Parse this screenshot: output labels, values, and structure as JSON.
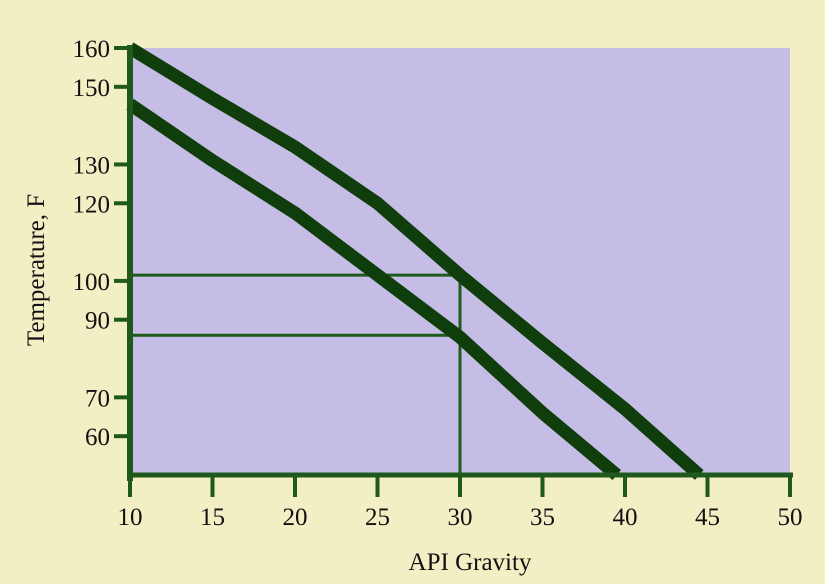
{
  "colors": {
    "background": "#f3efc5",
    "plot_area": "#c6bde6",
    "axis": "#1f5a1c",
    "curve": "#0f3d0c",
    "guide": "#1e5a1a"
  },
  "chart_data": {
    "type": "line",
    "title": "",
    "xlabel": "API Gravity",
    "ylabel": "Temperature, F",
    "xlim": [
      10,
      50
    ],
    "ylim": [
      50,
      160
    ],
    "x_ticks": [
      10,
      15,
      20,
      25,
      30,
      35,
      40,
      45,
      50
    ],
    "y_ticks": [
      60,
      70,
      90,
      100,
      120,
      130,
      150,
      160
    ],
    "grid": false,
    "legend": "none",
    "series": [
      {
        "x": [
          10,
          15,
          20,
          25,
          30,
          35,
          40,
          44.5
        ],
        "y": [
          160,
          147,
          134.5,
          120,
          101.5,
          84,
          67,
          50
        ]
      },
      {
        "x": [
          10,
          15,
          20,
          25,
          30,
          35,
          39.5
        ],
        "y": [
          145.5,
          131,
          117.5,
          101.5,
          85.5,
          66,
          50
        ]
      }
    ],
    "guide_lines": [
      {
        "x": [
          10,
          30
        ],
        "y": [
          101.5,
          101.5
        ]
      },
      {
        "x": [
          10,
          30
        ],
        "y": [
          86,
          86
        ]
      },
      {
        "x": [
          30,
          30
        ],
        "y": [
          50,
          101.5
        ]
      }
    ]
  }
}
